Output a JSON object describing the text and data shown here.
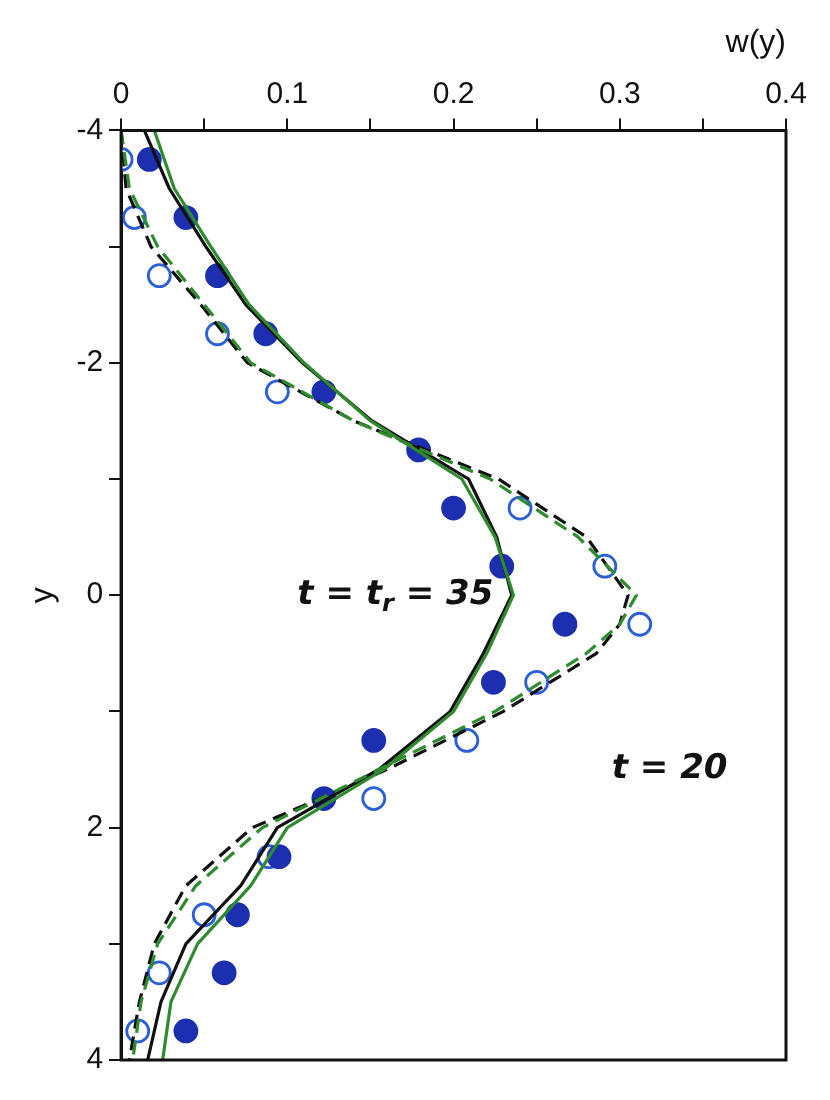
{
  "chart_data": {
    "type": "line",
    "xlabel": "w(y)",
    "ylabel": "y",
    "xlim": [
      0,
      0.4
    ],
    "xticks": [
      0,
      {
        "value": 0.05,
        "label": null
      },
      0.1,
      {
        "value": 0.15,
        "label": null
      },
      0.2,
      {
        "value": 0.25,
        "label": null
      },
      0.3,
      {
        "value": 0.35,
        "label": null
      },
      0.4
    ],
    "ylim": [
      4,
      -4
    ],
    "yticks": [
      -4,
      {
        "value": -3,
        "label": null
      },
      -2,
      {
        "value": -1,
        "label": null
      },
      0,
      {
        "value": 1,
        "label": null
      },
      2,
      {
        "value": 3,
        "label": null
      },
      4
    ],
    "grid": false,
    "legend": false,
    "series": [
      {
        "color": "#2e8b2e",
        "line_style": "solid",
        "marker": "none",
        "x": [
          0.02,
          0.032,
          0.054,
          0.077,
          0.11,
          0.15,
          0.205,
          0.225,
          0.236,
          0.22,
          0.2,
          0.158,
          0.1,
          0.078,
          0.046,
          0.03,
          0.025
        ],
        "values": [
          -4,
          -3.5,
          -3,
          -2.5,
          -2,
          -1.5,
          -1,
          -0.5,
          0,
          0.5,
          1,
          1.5,
          2,
          2.5,
          3,
          3.5,
          4
        ]
      },
      {
        "color": "#2e8b2e",
        "line_style": "dashed",
        "marker": "none",
        "x": [
          0,
          0.005,
          0.022,
          0.05,
          0.078,
          0.14,
          0.222,
          0.275,
          0.31,
          0.3,
          0.28,
          0.225,
          0.155,
          0.085,
          0.045,
          0.022,
          0.012,
          0.007
        ],
        "values": [
          -4,
          -3.5,
          -3,
          -2.5,
          -2,
          -1.5,
          -1,
          -0.5,
          0,
          0.25,
          0.5,
          1,
          1.5,
          2,
          2.5,
          3,
          3.5,
          4
        ]
      },
      {
        "color": "#111111",
        "line_style": "solid",
        "marker": "none",
        "x": [
          0.014,
          0.029,
          0.051,
          0.075,
          0.109,
          0.151,
          0.209,
          0.226,
          0.235,
          0.218,
          0.198,
          0.155,
          0.094,
          0.072,
          0.039,
          0.024,
          0.016
        ],
        "values": [
          -4,
          -3.5,
          -3,
          -2.5,
          -2,
          -1.5,
          -1,
          -0.5,
          0,
          0.5,
          1,
          1.5,
          2,
          2.5,
          3,
          3.5,
          4
        ]
      },
      {
        "color": "#111111",
        "line_style": "dashed",
        "marker": "none",
        "x": [
          0,
          0.003,
          0.018,
          0.048,
          0.076,
          0.14,
          0.227,
          0.28,
          0.305,
          0.3,
          0.286,
          0.23,
          0.16,
          0.079,
          0.039,
          0.02,
          0.011,
          0.005
        ],
        "values": [
          -4,
          -3.5,
          -3,
          -2.5,
          -2,
          -1.5,
          -1,
          -0.5,
          0,
          0.25,
          0.5,
          1,
          1.5,
          2,
          2.5,
          3,
          3.5,
          4
        ]
      },
      {
        "type": "scatter",
        "color": "#1c2fae",
        "marker": "circle",
        "x": [
          0.017,
          0.039,
          0.058,
          0.087,
          0.122,
          0.179,
          0.2,
          0.229,
          0.267,
          0.224,
          0.152,
          0.122,
          0.095,
          0.07,
          0.062,
          0.039
        ],
        "values": [
          -3.75,
          -3.25,
          -2.75,
          -2.25,
          -1.75,
          -1.25,
          -0.75,
          -0.25,
          0.25,
          0.75,
          1.25,
          1.75,
          2.25,
          2.75,
          3.25,
          3.75
        ]
      },
      {
        "type": "scatter",
        "color": "#2a5fd8",
        "marker": "circle",
        "x": [
          0,
          0.008,
          0.023,
          0.058,
          0.094,
          0.24,
          0.291,
          0.312,
          0.25,
          0.208,
          0.152,
          0.089,
          0.05,
          0.023,
          0.01
        ],
        "values": [
          -3.75,
          -3.25,
          -2.75,
          -2.25,
          -1.75,
          -0.75,
          -0.25,
          0.25,
          0.75,
          1.25,
          1.75,
          2.25,
          2.75,
          3.25,
          3.75
        ]
      }
    ],
    "annotations": [
      "t = 20",
      "t = t$_{r}$ = 35"
    ]
  }
}
